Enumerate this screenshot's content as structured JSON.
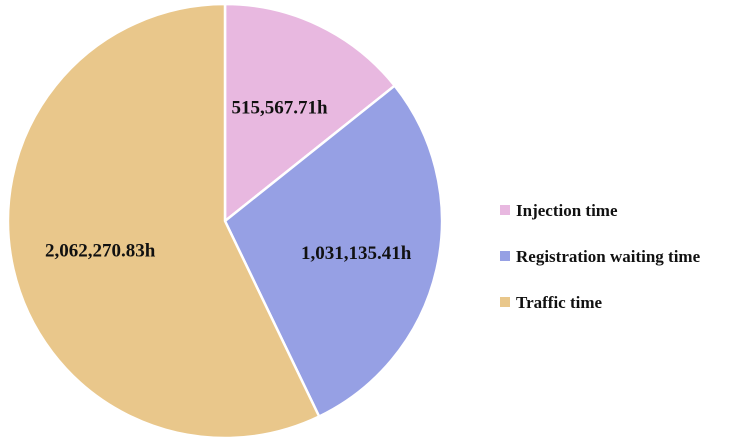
{
  "chart_data": {
    "type": "pie",
    "title": "",
    "unit_suffix": "h",
    "legend_position": "right",
    "series": [
      {
        "name": "Injection time",
        "value": 515567.71,
        "label": "515,567.71h",
        "color": "#e8b8e0"
      },
      {
        "name": "Registration waiting time",
        "value": 1031135.41,
        "label": "1,031,135.41h",
        "color": "#96a0e4"
      },
      {
        "name": "Traffic time",
        "value": 2062270.83,
        "label": "2,062,270.83h",
        "color": "#e9c78b"
      }
    ]
  }
}
